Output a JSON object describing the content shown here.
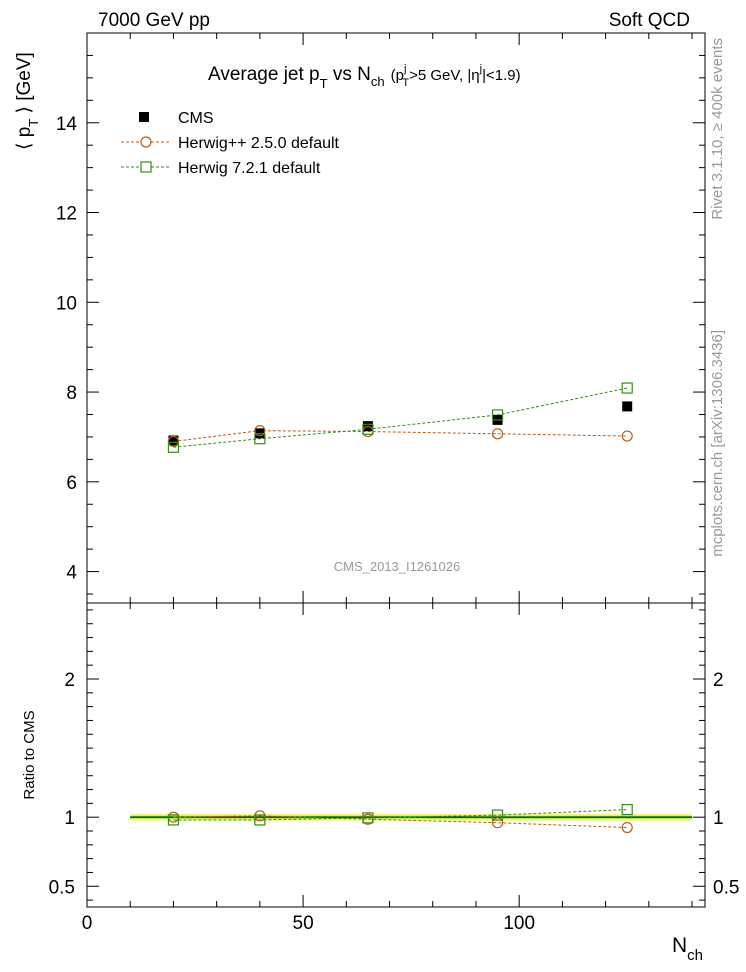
{
  "header": {
    "left": "7000 GeV pp",
    "right": "Soft QCD"
  },
  "side": {
    "top": "Rivet 3.1.10, ≥ 400k events",
    "bottom": "mcplots.cern.ch [arXiv:1306.3436]"
  },
  "watermark": "CMS_2013_I1261026",
  "colors": {
    "cms": "#000000",
    "herwigpp": "#b85c1a",
    "herwig7": "#3a8a1a",
    "band_outer": "#f5f57a",
    "band_inner": "#7fe040"
  },
  "chart_data": [
    {
      "type": "scatter",
      "title": "Average jet p_T vs N_ch (p_T^j>5 GeV, |η^j|<1.9)",
      "title_parts": {
        "main": "Average jet p",
        "sub_T": "T",
        "vs": " vs N",
        "sub_ch": "ch",
        "cut_open": "(p",
        "cut_sup_j": "j",
        "cut_sub_T": "T",
        "cut_mid": ">5 GeV, |η",
        "cut_sup_j2": "j",
        "cut_end": "|<1.9)"
      },
      "ylabel": "⟨ p_T ⟩ [GeV]",
      "ylabel_parts": {
        "open": "⟨ p",
        "sub": "T",
        "close": " ⟩ [GeV]"
      },
      "xlabel": "",
      "xlim": [
        0,
        143
      ],
      "ylim": [
        3.3,
        16.0
      ],
      "yticks": [
        4,
        6,
        8,
        10,
        12,
        14
      ],
      "ytick_labels": [
        "4",
        "6",
        "8",
        "10",
        "12",
        "14"
      ],
      "legend_position": "top-left",
      "series": [
        {
          "name": "CMS",
          "marker": "filled-square",
          "x": [
            20,
            40,
            65,
            95,
            125
          ],
          "y": [
            6.92,
            7.08,
            7.24,
            7.38,
            7.68
          ]
        },
        {
          "name": "Herwig++ 2.5.0 default",
          "marker": "open-circle",
          "line": "dashed",
          "x": [
            20,
            40,
            65,
            95,
            125
          ],
          "y": [
            6.9,
            7.14,
            7.12,
            7.07,
            7.02
          ]
        },
        {
          "name": "Herwig 7.2.1 default",
          "marker": "open-square",
          "line": "dashed",
          "x": [
            20,
            40,
            65,
            95,
            125
          ],
          "y": [
            6.77,
            6.96,
            7.17,
            7.49,
            8.09
          ]
        }
      ]
    },
    {
      "type": "line",
      "title": "",
      "ylabel": "Ratio to CMS",
      "xlabel": "N_ch",
      "xlabel_parts": {
        "main": "N",
        "sub": "ch"
      },
      "xlim": [
        0,
        143
      ],
      "ylim": [
        0.35,
        2.55
      ],
      "yticks": [
        0.5,
        1,
        2
      ],
      "ytick_labels": [
        "0.5",
        "1",
        "2"
      ],
      "xticks": [
        0,
        50,
        100
      ],
      "xtick_labels": [
        "0",
        "50",
        "100"
      ],
      "band": {
        "x": [
          10,
          140
        ],
        "outer": [
          0.975,
          1.025
        ],
        "inner": [
          0.99,
          1.01
        ]
      },
      "series": [
        {
          "name": "Herwig++ 2.5.0 default",
          "x": [
            20,
            40,
            65,
            95,
            125
          ],
          "y": [
            1.0,
            1.01,
            0.985,
            0.96,
            0.925
          ]
        },
        {
          "name": "Herwig 7.2.1 default",
          "x": [
            20,
            40,
            65,
            95,
            125
          ],
          "y": [
            0.98,
            0.98,
            0.995,
            1.015,
            1.055
          ]
        }
      ]
    }
  ]
}
